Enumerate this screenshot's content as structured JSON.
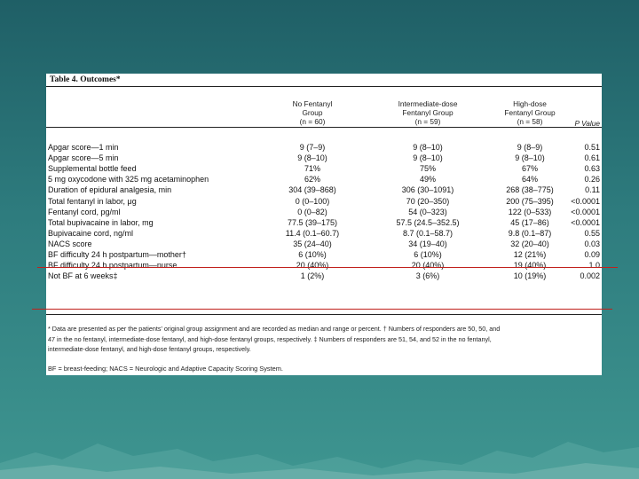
{
  "table": {
    "title": "Table 4. Outcomes*",
    "columns": [
      {
        "lines": [
          "No Fentanyl",
          "Group",
          "(n = 60)"
        ]
      },
      {
        "lines": [
          "Intermediate-dose",
          "Fentanyl Group",
          "(n = 59)"
        ]
      },
      {
        "lines": [
          "High-dose",
          "Fentanyl Group",
          "(n = 58)"
        ]
      },
      {
        "lines": [
          "P Value"
        ]
      }
    ],
    "rows": [
      {
        "label": "Apgar score—1 min",
        "v1": "9 (7–9)",
        "v2": "9 (8–10)",
        "v3": "9 (8–9)",
        "p": "0.51"
      },
      {
        "label": "Apgar score—5 min",
        "v1": "9 (8–10)",
        "v2": "9 (8–10)",
        "v3": "9 (8–10)",
        "p": "0.61"
      },
      {
        "label": "Supplemental bottle feed",
        "v1": "71%",
        "v2": "75%",
        "v3": "67%",
        "p": "0.63"
      },
      {
        "label": "5 mg oxycodone with 325 mg acetaminophen",
        "v1": "62%",
        "v2": "49%",
        "v3": "64%",
        "p": "0.26"
      },
      {
        "label": "Duration of epidural analgesia, min",
        "v1": "304 (39–868)",
        "v2": "306 (30–1091)",
        "v3": "268 (38–775)",
        "p": "0.11"
      },
      {
        "label": "Total fentanyl in labor, μg",
        "v1": "0 (0–100)",
        "v2": "70 (20–350)",
        "v3": "200 (75–395)",
        "p": "<0.0001"
      },
      {
        "label": "Fentanyl cord, pg/ml",
        "v1": "0 (0–82)",
        "v2": "54 (0–323)",
        "v3": "122 (0–533)",
        "p": "<0.0001"
      },
      {
        "label": "Total bupivacaine in labor, mg",
        "v1": "77.5 (39–175)",
        "v2": "57.5 (24.5–352.5)",
        "v3": "45 (17–86)",
        "p": "<0.0001"
      },
      {
        "label": "Bupivacaine cord, ng/ml",
        "v1": "11.4 (0.1–60.7)",
        "v2": "8.7 (0.1–58.7)",
        "v3": "9.8 (0.1–87)",
        "p": "0.55"
      },
      {
        "label": "NACS score",
        "v1": "35 (24–40)",
        "v2": "34 (19–40)",
        "v3": "32 (20–40)",
        "p": "0.03"
      },
      {
        "label": "BF difficulty 24 h postpartum—mother†",
        "v1": "6 (10%)",
        "v2": "6 (10%)",
        "v3": "12 (21%)",
        "p": "0.09"
      },
      {
        "label": "BF difficulty 24 h postpartum—nurse",
        "v1": "20 (40%)",
        "v2": "20 (40%)",
        "v3": "19 (40%)",
        "p": "1.0"
      },
      {
        "label": "Not BF at 6 weeks‡",
        "v1": "1 (2%)",
        "v2": "3 (6%)",
        "v3": "10 (19%)",
        "p": "0.002"
      }
    ],
    "footnote_lines": [
      "* Data are presented as per the patients' original group assignment and are recorded as median and range or percent. † Numbers of responders are 50, 50, and",
      "47 in the no fentanyl, intermediate-dose fentanyl, and high-dose fentanyl groups, respectively. ‡ Numbers of responders are 51, 54, and 52 in the no fentanyl,",
      "intermediate-dose fentanyl, and high-dose fentanyl groups, respectively."
    ],
    "abbreviations": "BF = breast-feeding; NACS = Neurologic and Adaptive Capacity Scoring System."
  },
  "colors": {
    "background_top": "#1f5f66",
    "background_bottom": "#3e9590",
    "highlight_line": "#c0201c"
  }
}
